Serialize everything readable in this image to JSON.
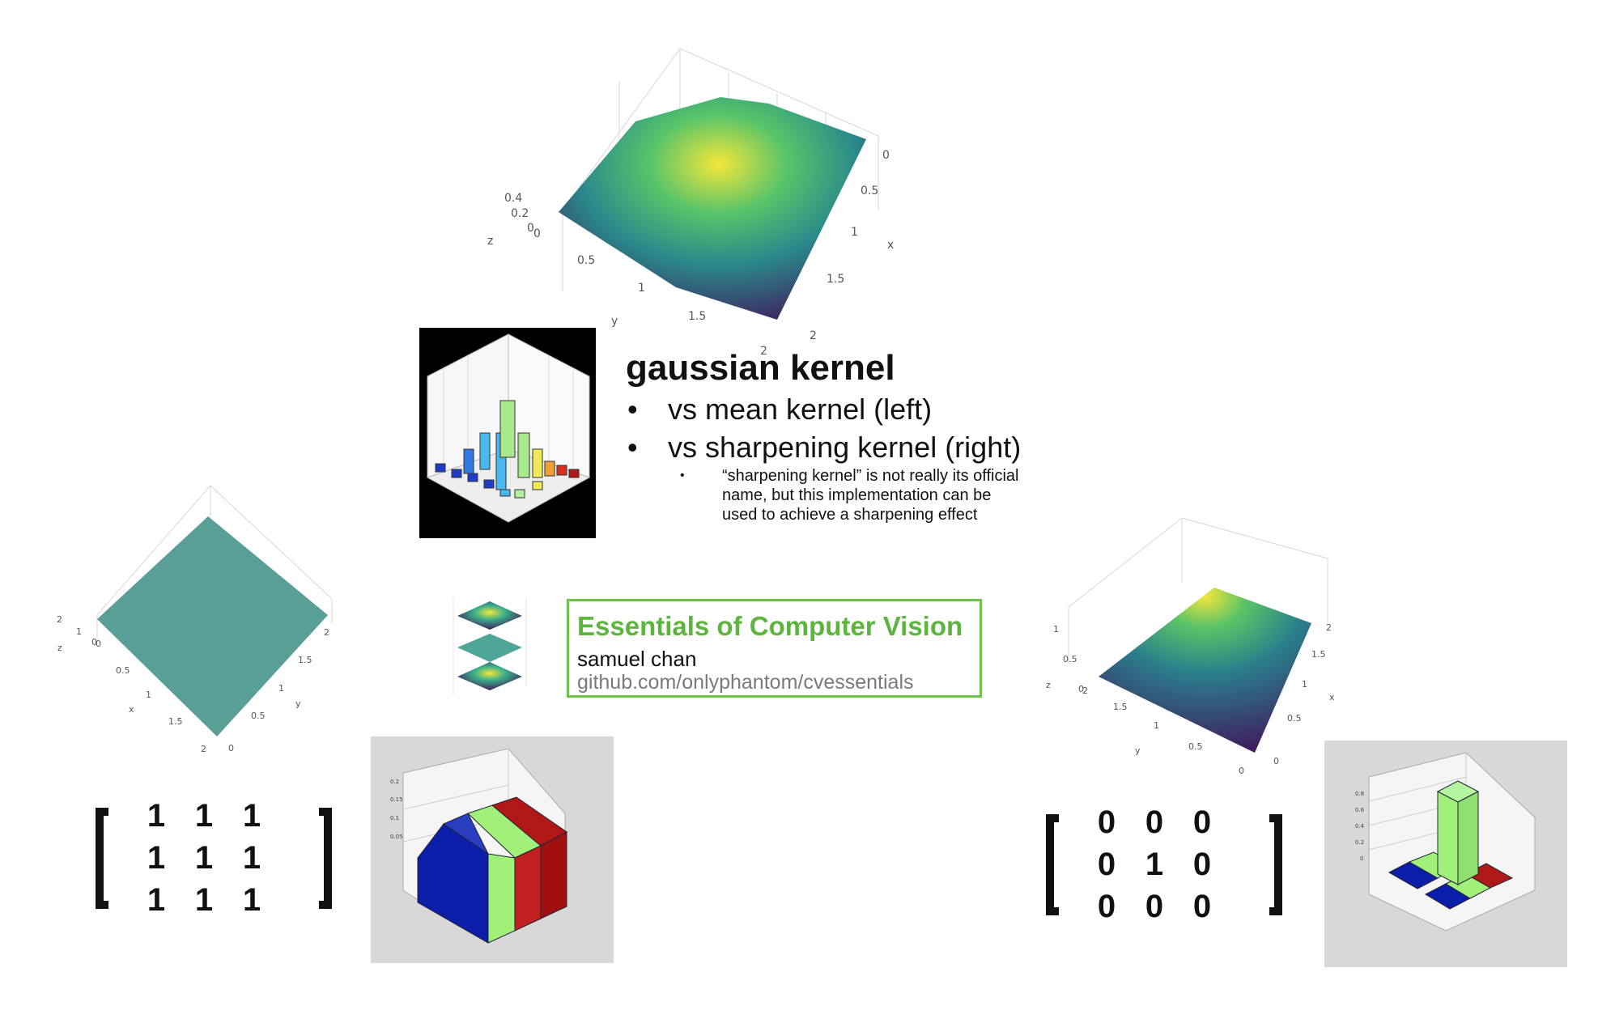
{
  "slide": {
    "title": "gaussian kernel",
    "bullets": [
      "vs mean kernel (left)",
      "vs sharpening kernel (right)"
    ],
    "sub_bullet": [
      "“sharpening kernel” is not really its official",
      "name, but this implementation can be",
      "used to achieve a sharpening effect"
    ],
    "bullet_symbol": "•"
  },
  "credit": {
    "title": "Essentials of Computer Vision",
    "author": "samuel chan",
    "url": "github.com/onlyphantom/cvessentials",
    "accent_color": "#5db53f"
  },
  "plots": {
    "top": {
      "z_ticks": [
        "0.4",
        "0.2",
        "0"
      ],
      "z_label": "z",
      "x_ticks": [
        "0",
        "0.5",
        "1",
        "1.5",
        "2"
      ],
      "x_label": "x",
      "y_ticks": [
        "0",
        "0.5",
        "1",
        "1.5",
        "2"
      ],
      "y_label": "y"
    },
    "left": {
      "z_ticks": [
        "2",
        "1",
        "0"
      ],
      "z_label": "z",
      "x_ticks": [
        "0",
        "0.5",
        "1",
        "1.5",
        "2"
      ],
      "x_label": "x",
      "y_ticks": [
        "0",
        "0.5",
        "1",
        "1.5",
        "2"
      ],
      "y_label": "y"
    },
    "right": {
      "z_ticks": [
        "1",
        "0.5",
        "0"
      ],
      "z_label": "z",
      "x_ticks": [
        "0",
        "0.5",
        "1",
        "1.5",
        "2"
      ],
      "x_label": "x",
      "y_ticks": [
        "0",
        "0.5",
        "1",
        "1.5",
        "2"
      ],
      "y_label": "y"
    }
  },
  "matrices": {
    "mean": [
      [
        "1",
        "1",
        "1"
      ],
      [
        "1",
        "1",
        "1"
      ],
      [
        "1",
        "1",
        "1"
      ]
    ],
    "sharpen": [
      [
        "0",
        "0",
        "0"
      ],
      [
        "0",
        "1",
        "0"
      ],
      [
        "0",
        "0",
        "0"
      ]
    ]
  },
  "colors": {
    "mean_surface": "#5a9e98",
    "viridis_dark": "#3f1f5e",
    "viridis_mid": "#2a8a8b",
    "viridis_peak": "#f4e63a"
  }
}
